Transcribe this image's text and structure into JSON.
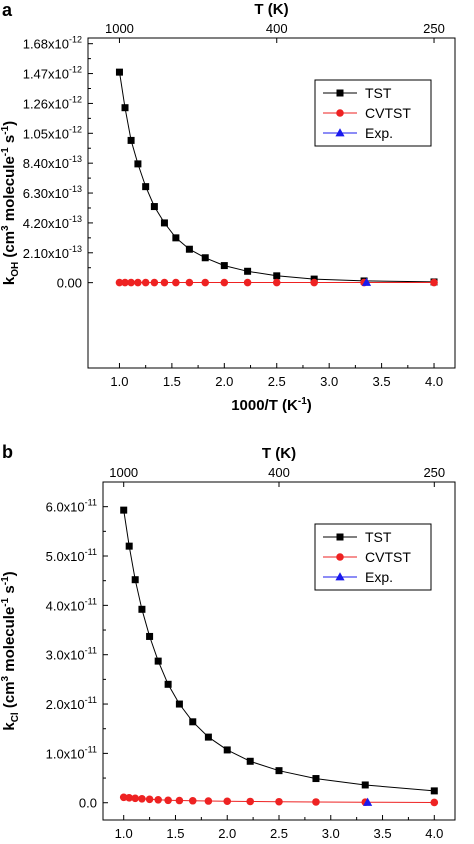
{
  "chart_data": [
    {
      "panel": "a",
      "type": "line",
      "xlabel": "1000/T (K",
      "xlabel_sup": "-1",
      "xlabel_end": ")",
      "ylabel": "k",
      "ylabel_sub": "OH",
      "ylabel_rest": " (cm",
      "ylabel_sup1": "3",
      "ylabel_mid": " molecule",
      "ylabel_sup2": "-1",
      "ylabel_mid2": " s",
      "ylabel_sup3": "-1",
      "ylabel_end": ")",
      "top_axis_title": "T (K)",
      "top_ticks": [
        {
          "T": "1000",
          "x": 1.0
        },
        {
          "T": "400",
          "x": 2.5
        },
        {
          "T": "250",
          "x": 4.0
        }
      ],
      "xlim": [
        0.7,
        4.2
      ],
      "xticks": [
        1.0,
        1.5,
        2.0,
        2.5,
        3.0,
        3.5,
        4.0
      ],
      "xtick_labels": [
        "1.0",
        "1.5",
        "2.0",
        "2.5",
        "3.0",
        "3.5",
        "4.0"
      ],
      "ylim": [
        -6e-13,
        1.72e-12
      ],
      "yticks": [
        0,
        2.1e-13,
        4.2e-13,
        6.3e-13,
        8.4e-13,
        1.05e-12,
        1.26e-12,
        1.47e-12,
        1.68e-12
      ],
      "ytick_mantissa": [
        "0.00",
        "2.10x10",
        "4.20x10",
        "6.30x10",
        "8.40x10",
        "1.05x10",
        "1.26x10",
        "1.47x10",
        "1.68x10"
      ],
      "ytick_exponent": [
        "",
        "-13",
        "-13",
        "-13",
        "-13",
        "-12",
        "-12",
        "-12",
        "-12"
      ],
      "legend_position": "top-right",
      "series": [
        {
          "name": "TST",
          "color": "#000000",
          "marker": "square",
          "x": [
            1.0,
            1.053,
            1.111,
            1.176,
            1.25,
            1.333,
            1.429,
            1.538,
            1.667,
            1.818,
            2.0,
            2.222,
            2.5,
            2.857,
            3.333,
            4.0
          ],
          "y": [
            1.48e-12,
            1.23e-12,
            1e-12,
            8.35e-13,
            6.75e-13,
            5.35e-13,
            4.2e-13,
            3.15e-13,
            2.35e-13,
            1.75e-13,
            1.2e-13,
            8e-14,
            4.8e-14,
            2.5e-14,
            1.2e-14,
            5e-15
          ]
        },
        {
          "name": "CVTST",
          "color": "#ee2222",
          "marker": "circle",
          "x": [
            1.0,
            1.053,
            1.111,
            1.176,
            1.25,
            1.333,
            1.429,
            1.538,
            1.667,
            1.818,
            2.0,
            2.222,
            2.5,
            2.857,
            3.333,
            4.0
          ],
          "y": [
            1e-15,
            1e-15,
            1e-15,
            1e-15,
            1e-15,
            1e-15,
            1e-15,
            1e-15,
            1e-15,
            1e-15,
            1e-15,
            1e-15,
            1e-15,
            1e-15,
            1e-15,
            1e-15
          ]
        },
        {
          "name": "Exp.",
          "color": "#1a1aee",
          "marker": "triangle",
          "x": [
            3.356
          ],
          "y": [
            1e-15
          ]
        }
      ]
    },
    {
      "panel": "b",
      "type": "line",
      "xlabel": "1000/T (K",
      "xlabel_sup": "-1",
      "xlabel_end": ")",
      "ylabel": "k",
      "ylabel_sub": "Cl",
      "ylabel_rest": " (cm",
      "ylabel_sup1": "3",
      "ylabel_mid": " molecule",
      "ylabel_sup2": "-1",
      "ylabel_mid2": " s",
      "ylabel_sup3": "-1",
      "ylabel_end": ")",
      "top_axis_title": "T (K)",
      "top_ticks": [
        {
          "T": "1000",
          "x": 1.0
        },
        {
          "T": "400",
          "x": 2.5
        },
        {
          "T": "250",
          "x": 4.0
        }
      ],
      "xlim": [
        0.8,
        4.2
      ],
      "xticks": [
        1.0,
        1.5,
        2.0,
        2.5,
        3.0,
        3.5,
        4.0
      ],
      "xtick_labels": [
        "1.0",
        "1.5",
        "2.0",
        "2.5",
        "3.0",
        "3.5",
        "4.0"
      ],
      "ylim": [
        -3.5e-12,
        6.5e-11
      ],
      "yticks": [
        0,
        1e-11,
        2e-11,
        3e-11,
        4e-11,
        5e-11,
        6e-11
      ],
      "ytick_mantissa": [
        "0.0",
        "1.0x10",
        "2.0x10",
        "3.0x10",
        "4.0x10",
        "5.0x10",
        "6.0x10"
      ],
      "ytick_exponent": [
        "",
        "-11",
        "-11",
        "-11",
        "-11",
        "-11",
        "-11"
      ],
      "legend_position": "top-right",
      "series": [
        {
          "name": "TST",
          "color": "#000000",
          "marker": "square",
          "x": [
            1.0,
            1.053,
            1.111,
            1.176,
            1.25,
            1.333,
            1.429,
            1.538,
            1.667,
            1.818,
            2.0,
            2.222,
            2.5,
            2.857,
            3.333,
            4.0
          ],
          "y": [
            5.93e-11,
            5.2e-11,
            4.52e-11,
            3.92e-11,
            3.37e-11,
            2.87e-11,
            2.4e-11,
            2e-11,
            1.64e-11,
            1.33e-11,
            1.07e-11,
            8.4e-12,
            6.5e-12,
            4.9e-12,
            3.6e-12,
            2.4e-12
          ]
        },
        {
          "name": "CVTST",
          "color": "#ee2222",
          "marker": "circle",
          "x": [
            1.0,
            1.053,
            1.111,
            1.176,
            1.25,
            1.333,
            1.429,
            1.538,
            1.667,
            1.818,
            2.0,
            2.222,
            2.5,
            2.857,
            3.333,
            4.0
          ],
          "y": [
            1.1e-12,
            1e-12,
            9e-13,
            8e-13,
            7e-13,
            6e-13,
            5e-13,
            4.5e-13,
            4e-13,
            3.5e-13,
            3e-13,
            2.5e-13,
            2e-13,
            1.5e-13,
            1e-13,
            5e-14
          ]
        },
        {
          "name": "Exp.",
          "color": "#1a1aee",
          "marker": "triangle",
          "x": [
            3.356
          ],
          "y": [
            5e-14
          ]
        }
      ]
    }
  ]
}
